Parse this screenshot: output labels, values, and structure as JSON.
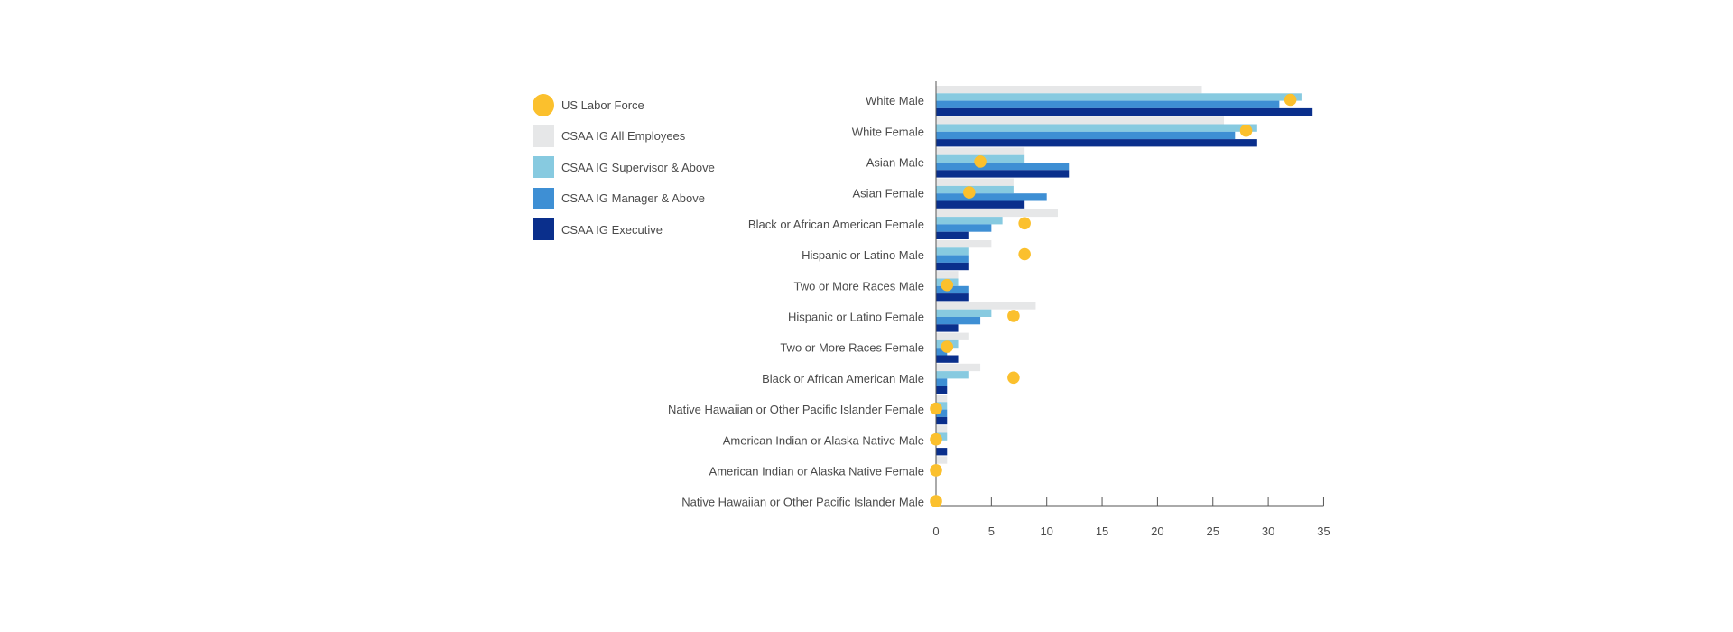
{
  "chart_data": {
    "type": "bar",
    "orientation": "horizontal",
    "categories": [
      "White Male",
      "White Female",
      "Asian Male",
      "Asian Female",
      "Black or African American Female",
      "Hispanic or Latino Male",
      "Two or More Races Male",
      "Hispanic or Latino Female",
      "Two or More Races Female",
      "Black or African American Male",
      "Native Hawaiian or Other Pacific Islander Female",
      "American Indian or Alaska Native Male",
      "American Indian or Alaska Native Female",
      "Native Hawaiian or Other Pacific Islander Male"
    ],
    "series": [
      {
        "name": "CSAA IG All Employees",
        "color": "#e6e7e8",
        "values": [
          24,
          26,
          8,
          7,
          11,
          5,
          2,
          9,
          3,
          4,
          1,
          1,
          1,
          0
        ]
      },
      {
        "name": "CSAA IG Supervisor & Above",
        "color": "#87cae0",
        "values": [
          33,
          29,
          8,
          7,
          6,
          3,
          2,
          5,
          2,
          3,
          1,
          1,
          0,
          0
        ]
      },
      {
        "name": "CSAA IG Manager & Above",
        "color": "#3e8fd4",
        "values": [
          31,
          27,
          12,
          10,
          5,
          3,
          3,
          4,
          1,
          1,
          1,
          0,
          0,
          0
        ]
      },
      {
        "name": "CSAA IG Executive",
        "color": "#0a2f8c",
        "values": [
          34,
          29,
          12,
          8,
          3,
          3,
          3,
          2,
          2,
          1,
          1,
          1,
          0,
          0
        ]
      }
    ],
    "markers": {
      "name": "US Labor Force",
      "color": "#fbc02d",
      "values": [
        32,
        28,
        4,
        3,
        8,
        8,
        1,
        7,
        1,
        7,
        0,
        0,
        0,
        0
      ]
    },
    "xlim": [
      0,
      35
    ],
    "xticks": [
      0,
      5,
      10,
      15,
      20,
      25,
      30,
      35
    ],
    "grid": false,
    "legend_position": "top-left"
  },
  "legend": [
    {
      "label": "US Labor Force",
      "color": "#fbc02d",
      "shape": "circle"
    },
    {
      "label": "CSAA IG All Employees",
      "color": "#e6e7e8",
      "shape": "square"
    },
    {
      "label": "CSAA IG Supervisor & Above",
      "color": "#87cae0",
      "shape": "square"
    },
    {
      "label": "CSAA IG Manager & Above",
      "color": "#3e8fd4",
      "shape": "square"
    },
    {
      "label": "CSAA IG Executive",
      "color": "#0a2f8c",
      "shape": "square"
    }
  ]
}
